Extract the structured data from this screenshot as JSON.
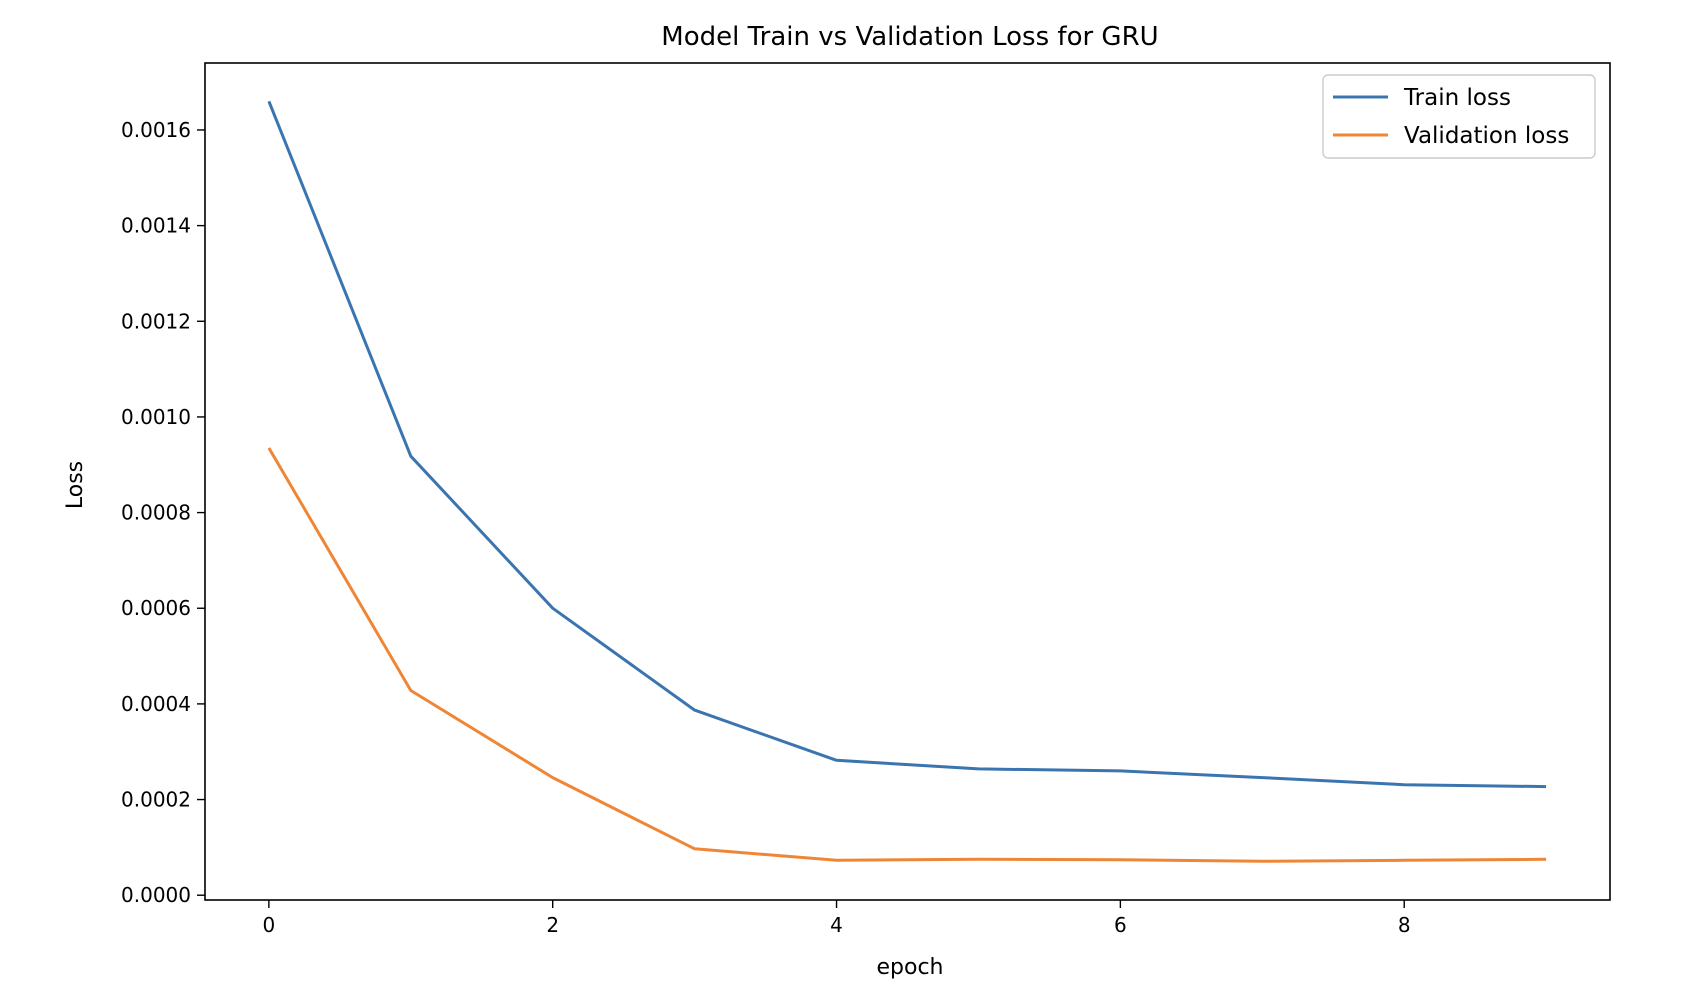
{
  "chart_data": {
    "type": "line",
    "title": "Model Train vs Validation Loss for GRU",
    "xlabel": "epoch",
    "ylabel": "Loss",
    "x": [
      0,
      1,
      2,
      3,
      4,
      5,
      6,
      7,
      8,
      9
    ],
    "xlim": [
      -0.45,
      9.45
    ],
    "ylim": [
      -1e-05,
      0.00174
    ],
    "x_ticks": [
      0,
      2,
      4,
      6,
      8
    ],
    "x_tick_labels": [
      "0",
      "2",
      "4",
      "6",
      "8"
    ],
    "y_ticks": [
      0.0,
      0.0002,
      0.0004,
      0.0006,
      0.0008,
      0.001,
      0.0012,
      0.0014,
      0.0016
    ],
    "y_tick_labels": [
      "0.0000",
      "0.0002",
      "0.0004",
      "0.0006",
      "0.0008",
      "0.0010",
      "0.0012",
      "0.0014",
      "0.0016"
    ],
    "grid": false,
    "legend_position": "top-right",
    "series": [
      {
        "name": "Train loss",
        "color": "#3b75af",
        "values": [
          0.00166,
          0.000918,
          0.0006,
          0.000387,
          0.000282,
          0.000264,
          0.00026,
          0.000246,
          0.000231,
          0.000227
        ]
      },
      {
        "name": "Validation loss",
        "color": "#ef8636",
        "values": [
          0.000935,
          0.000428,
          0.000246,
          9.7e-05,
          7.3e-05,
          7.5e-05,
          7.4e-05,
          7.1e-05,
          7.3e-05,
          7.5e-05
        ]
      }
    ]
  }
}
